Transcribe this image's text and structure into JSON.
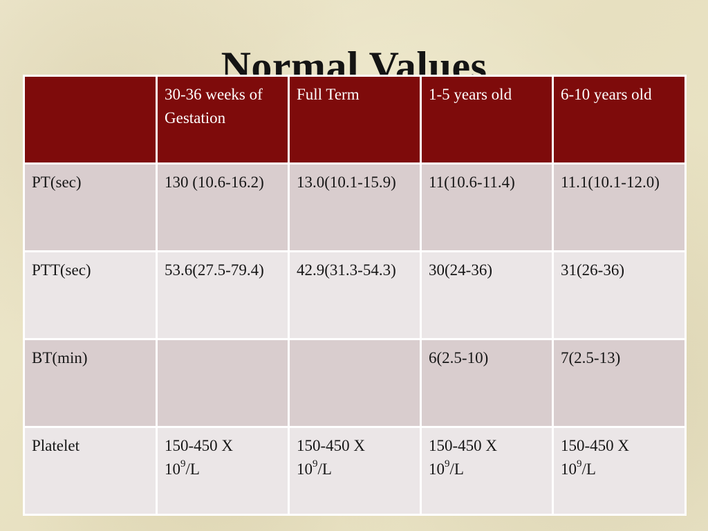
{
  "title": "Normal Values",
  "table": {
    "headers": [
      "",
      "30-36 weeks of Gestation",
      "Full Term",
      "1-5 years old",
      "6-10 years old"
    ],
    "rows": [
      {
        "label": "PT(sec)",
        "cells": [
          "130 (10.6-16.2)",
          "13.0(10.1-15.9)",
          "11(10.6-11.4)",
          "11.1(10.1-12.0)"
        ]
      },
      {
        "label": "PTT(sec)",
        "cells": [
          "53.6(27.5-79.4)",
          "42.9(31.3-54.3)",
          "30(24-36)",
          "31(26-36)"
        ]
      },
      {
        "label": "BT(min)",
        "cells": [
          "",
          "",
          "6(2.5-10)",
          "7(2.5-13)"
        ]
      },
      {
        "label": "Platelet",
        "cells": [
          {
            "prefix": "150-450 X",
            "base": "10",
            "exp": "9",
            "unit": "/L"
          },
          {
            "prefix": "150-450 X",
            "base": "10",
            "exp": "9",
            "unit": "/L"
          },
          {
            "prefix": "150-450 X",
            "base": "10",
            "exp": "9",
            "unit": "/L"
          },
          {
            "prefix": "150-450 X",
            "base": "10",
            "exp": "9",
            "unit": "/L"
          }
        ]
      }
    ]
  },
  "colors": {
    "header_bg": "#7e0b0b",
    "row_odd_bg": "#d9cdce",
    "row_even_bg": "#ebe6e7",
    "border": "#ffffff"
  }
}
